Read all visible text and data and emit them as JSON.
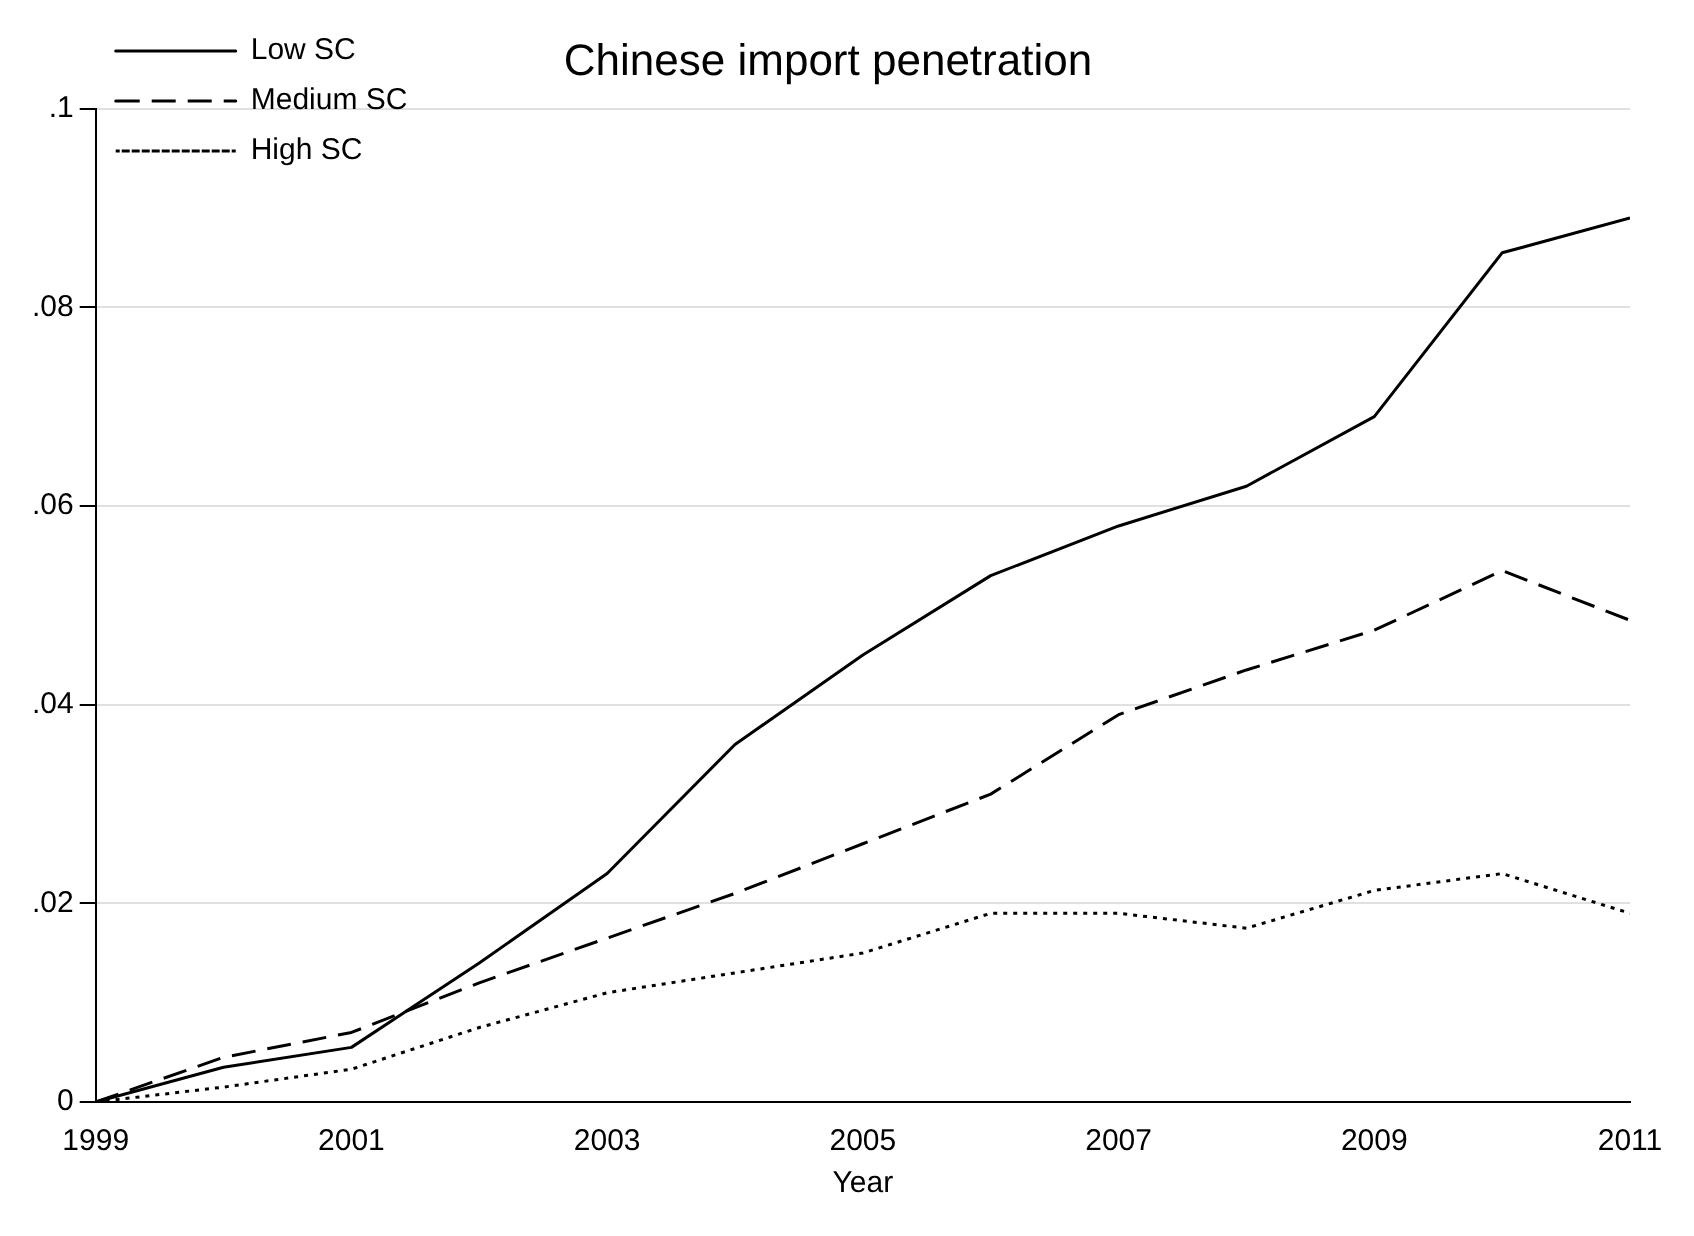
{
  "chart_data": {
    "type": "line",
    "title": "Chinese import penetration",
    "xlabel": "Year",
    "x": [
      1999,
      2000,
      2001,
      2002,
      2003,
      2004,
      2005,
      2006,
      2007,
      2008,
      2009,
      2010,
      2011
    ],
    "series": [
      {
        "name": "Low SC",
        "color": "#000000",
        "line_style": "solid",
        "values": [
          0,
          0.0035,
          0.0055,
          0.014,
          0.023,
          0.036,
          0.045,
          0.053,
          0.058,
          0.062,
          0.069,
          0.0855,
          0.089
        ]
      },
      {
        "name": "Medium SC",
        "color": "#000000",
        "line_style": "dashed",
        "values": [
          0,
          0.0045,
          0.007,
          0.012,
          0.0165,
          0.021,
          0.026,
          0.031,
          0.039,
          0.0435,
          0.0475,
          0.0535,
          0.0485
        ]
      },
      {
        "name": "High SC",
        "color": "#000000",
        "line_style": "dotted",
        "values": [
          0,
          0.0015,
          0.0033,
          0.0075,
          0.011,
          0.013,
          0.015,
          0.019,
          0.019,
          0.0175,
          0.0213,
          0.023,
          0.019
        ]
      }
    ],
    "xlim": [
      1999,
      2011
    ],
    "xticks": [
      1999,
      2001,
      2003,
      2005,
      2007,
      2009,
      2011
    ],
    "ylim": [
      0,
      0.1
    ],
    "yticks": [
      0,
      {
        "value": 0.02,
        "label": ".02"
      },
      {
        "value": 0.04,
        "label": ".04"
      },
      {
        "value": 0.06,
        "label": ".06"
      },
      {
        "value": 0.08,
        "label": ".08"
      },
      {
        "value": 0.1,
        "label": ".1"
      }
    ],
    "grid": "y",
    "legend": "top left",
    "marker": "none"
  }
}
